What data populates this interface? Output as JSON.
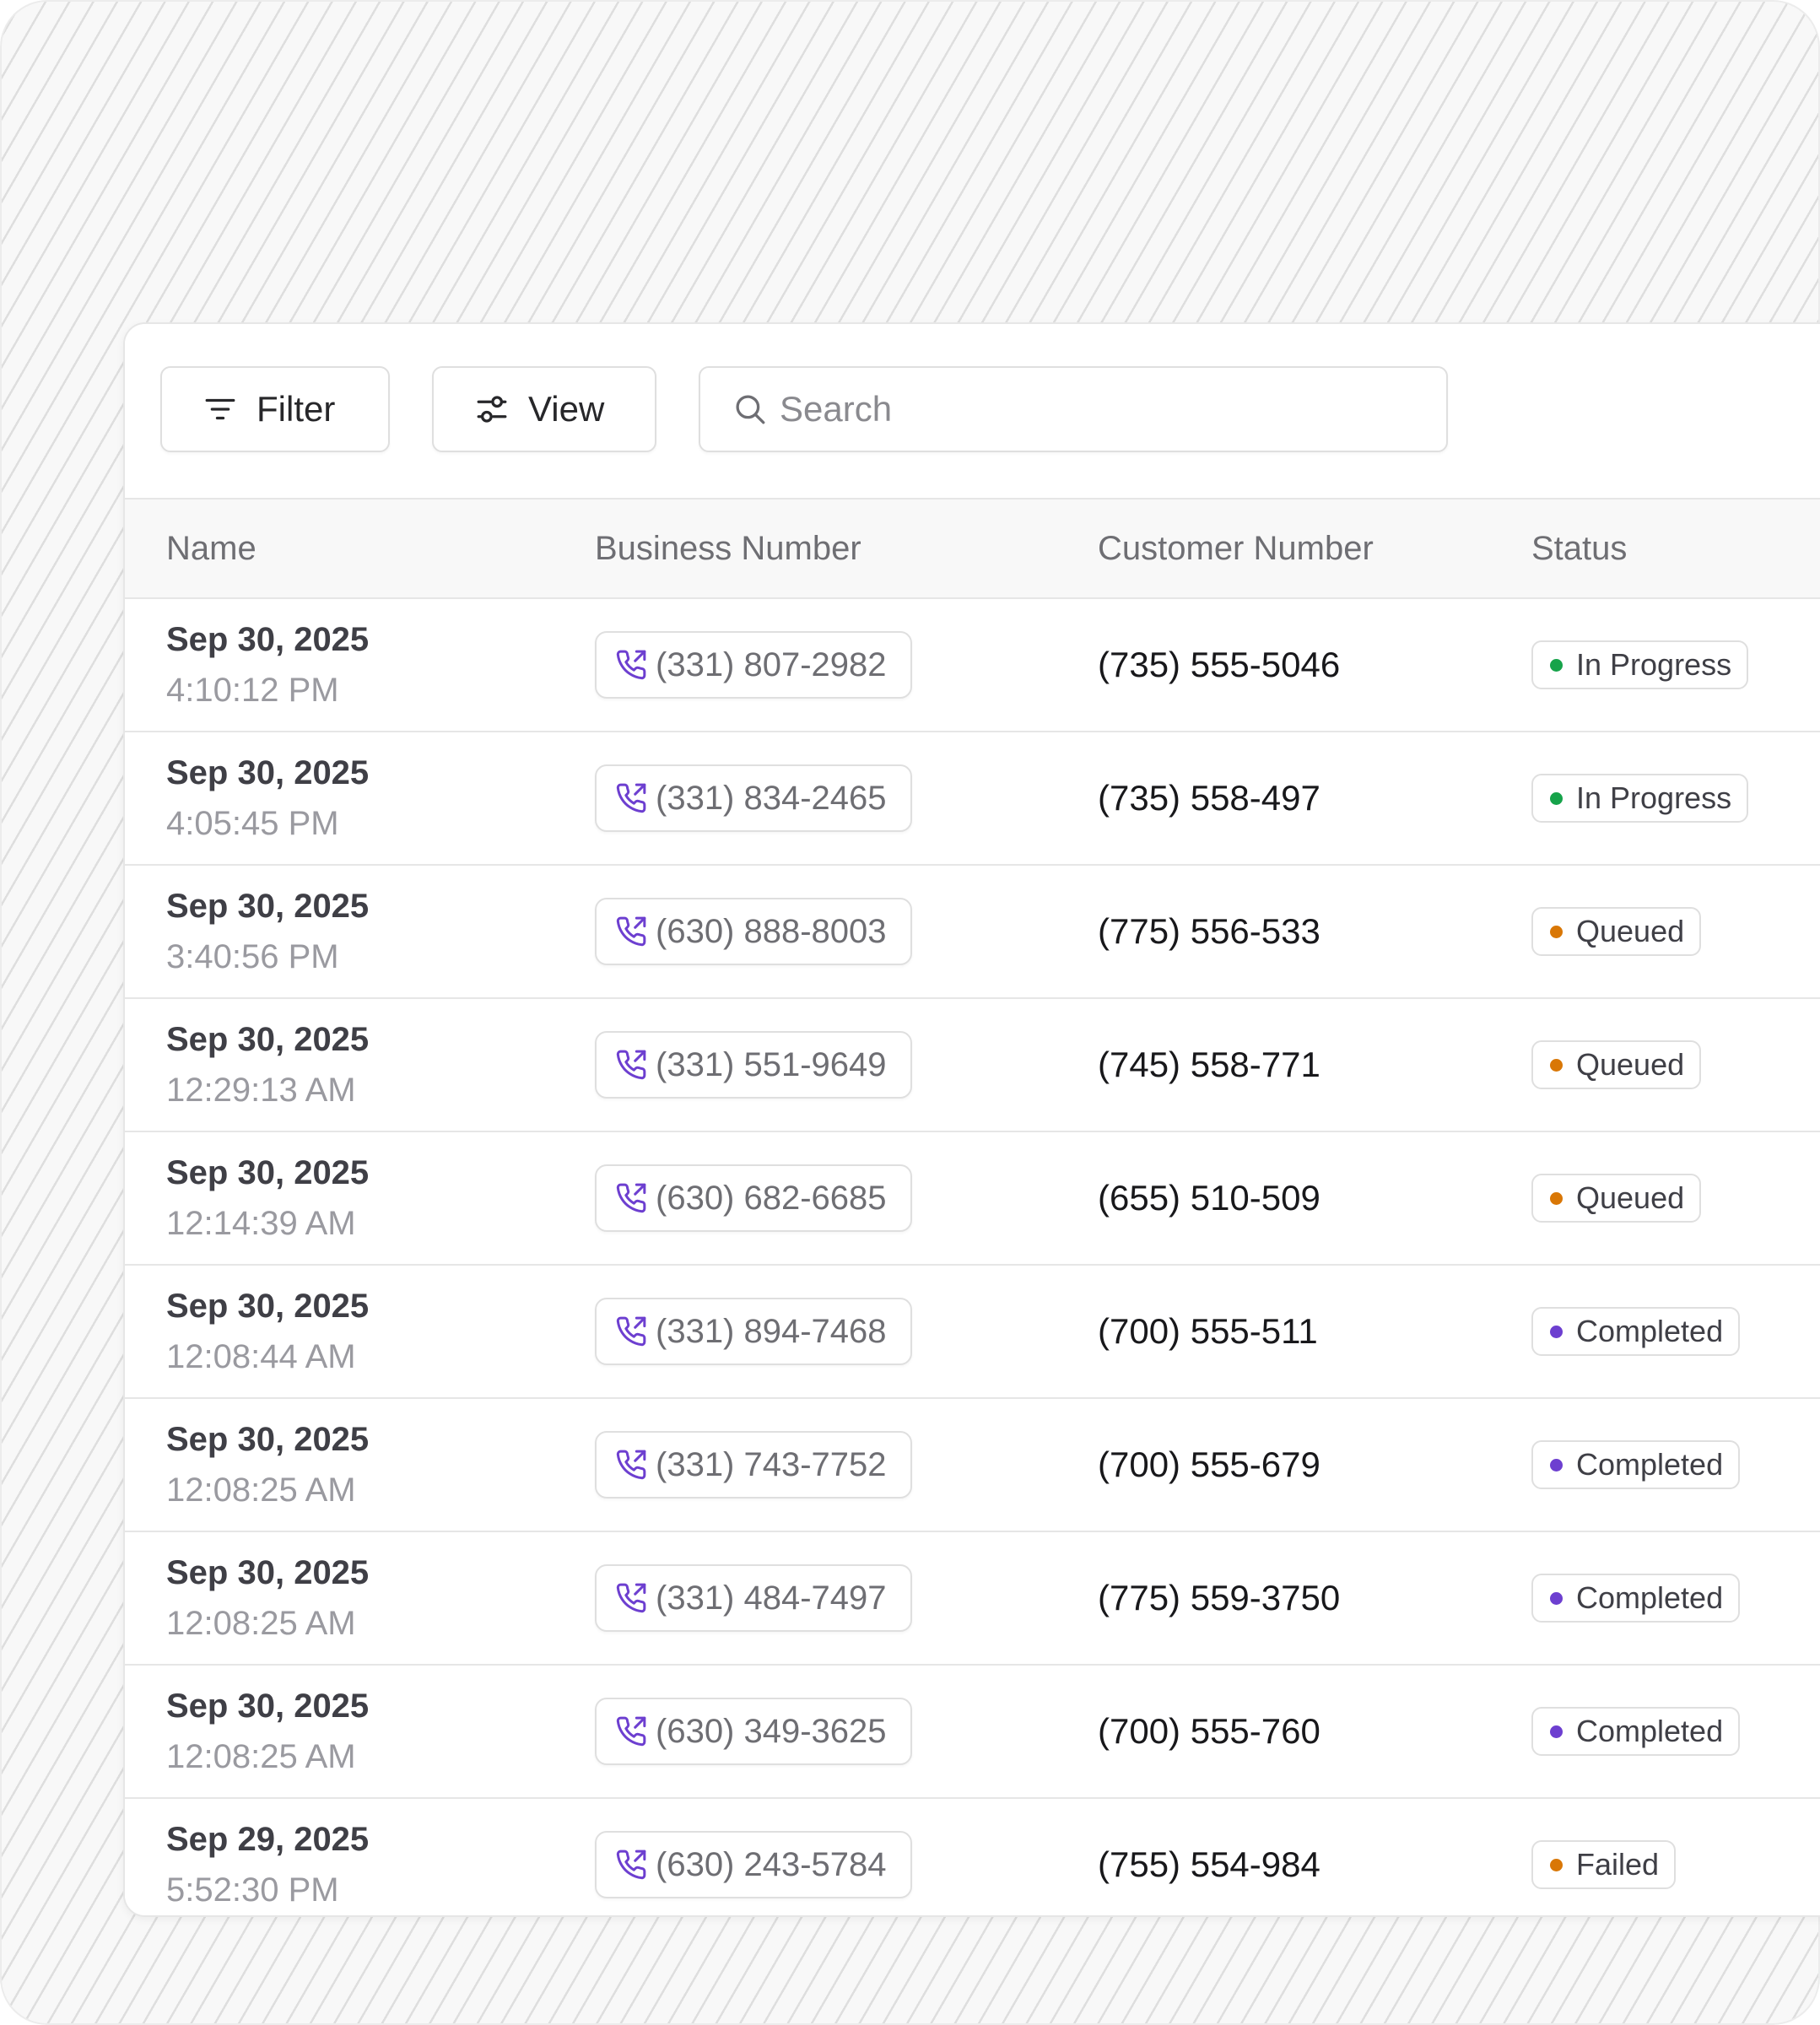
{
  "toolbar": {
    "filter_label": "Filter",
    "view_label": "View",
    "search_placeholder": "Search",
    "search_value": ""
  },
  "columns": {
    "name": "Name",
    "business_number": "Business Number",
    "customer_number": "Customer Number",
    "status": "Status"
  },
  "status_colors": {
    "In Progress": "#16a34a",
    "Queued": "#d97706",
    "Completed": "#6d3fd0",
    "Failed": "#d97706"
  },
  "accent_color": "#6d3fd0",
  "rows": [
    {
      "date": "Sep 30, 2025",
      "time": "4:10:12 PM",
      "business_number": "(331) 807-2982",
      "customer_number": "(735) 555-5046",
      "status": "In Progress"
    },
    {
      "date": "Sep 30, 2025",
      "time": "4:05:45 PM",
      "business_number": "(331) 834-2465",
      "customer_number": "(735) 558-497",
      "status": "In Progress"
    },
    {
      "date": "Sep 30, 2025",
      "time": "3:40:56 PM",
      "business_number": "(630) 888-8003",
      "customer_number": "(775) 556-533",
      "status": "Queued"
    },
    {
      "date": "Sep 30, 2025",
      "time": "12:29:13 AM",
      "business_number": "(331) 551-9649",
      "customer_number": "(745) 558-771",
      "status": "Queued"
    },
    {
      "date": "Sep 30, 2025",
      "time": "12:14:39 AM",
      "business_number": "(630) 682-6685",
      "customer_number": "(655) 510-509",
      "status": "Queued"
    },
    {
      "date": "Sep 30, 2025",
      "time": "12:08:44 AM",
      "business_number": "(331) 894-7468",
      "customer_number": "(700) 555-511",
      "status": "Completed"
    },
    {
      "date": "Sep 30, 2025",
      "time": "12:08:25 AM",
      "business_number": "(331) 743-7752",
      "customer_number": "(700) 555-679",
      "status": "Completed"
    },
    {
      "date": "Sep 30, 2025",
      "time": "12:08:25 AM",
      "business_number": "(331) 484-7497",
      "customer_number": "(775) 559-3750",
      "status": "Completed"
    },
    {
      "date": "Sep 30, 2025",
      "time": "12:08:25 AM",
      "business_number": "(630) 349-3625",
      "customer_number": "(700) 555-760",
      "status": "Completed"
    },
    {
      "date": "Sep 29, 2025",
      "time": "5:52:30 PM",
      "business_number": "(630) 243-5784",
      "customer_number": "(755) 554-984",
      "status": "Failed"
    }
  ]
}
